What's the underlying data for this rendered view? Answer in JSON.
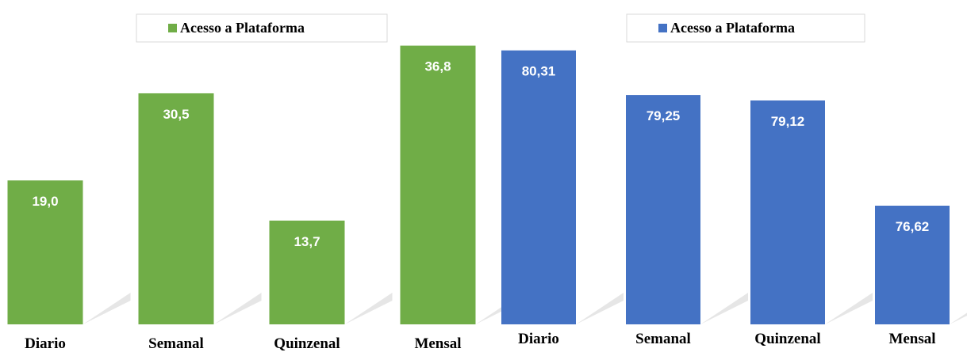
{
  "chart_data": [
    {
      "type": "bar",
      "categories": [
        "Diario",
        "Semanal",
        "Quinzenal",
        "Mensal"
      ],
      "series": [
        {
          "name": "Acesso a Plataforma",
          "color": "#70ad47",
          "values": [
            19.0,
            30.5,
            13.7,
            36.8
          ],
          "value_labels": [
            "19,0",
            "30,5",
            "13,7",
            "36,8"
          ]
        }
      ],
      "ylim": [
        0,
        40
      ],
      "legend": "top"
    },
    {
      "type": "bar",
      "categories": [
        "Diario",
        "Semanal",
        "Quinzenal",
        "Mensal"
      ],
      "series": [
        {
          "name": "Acesso a Plataforma",
          "color": "#4472c4",
          "values": [
            80.31,
            79.25,
            79.12,
            76.62
          ],
          "value_labels": [
            "80,31",
            "79,25",
            "79,12",
            "76,62"
          ]
        }
      ],
      "ylim": [
        73.8,
        81
      ],
      "legend": "top"
    }
  ]
}
